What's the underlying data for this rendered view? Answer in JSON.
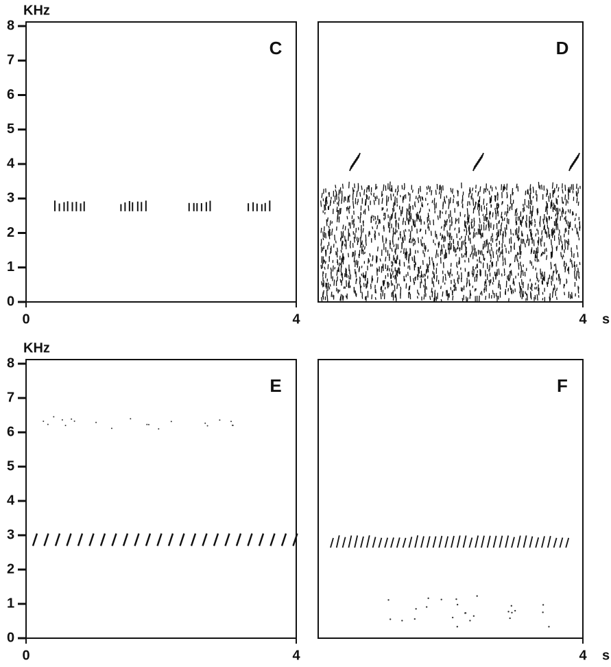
{
  "chart_data": [
    {
      "type": "spectrogram",
      "label": "C",
      "y_label": "KHz",
      "ylim": [
        0,
        8
      ],
      "yticks": [
        0,
        1,
        2,
        3,
        4,
        5,
        6,
        7,
        8
      ],
      "xlim": [
        0,
        4
      ],
      "xticks": [
        0,
        4
      ]
    },
    {
      "type": "spectrogram",
      "label": "D",
      "xlim": [
        0,
        4
      ],
      "xticks": [
        4
      ],
      "x_unit": "s"
    },
    {
      "type": "spectrogram",
      "label": "E",
      "y_label": "KHz",
      "ylim": [
        0,
        8
      ],
      "yticks": [
        0,
        1,
        2,
        3,
        4,
        5,
        6,
        7,
        8
      ],
      "xlim": [
        0,
        4
      ],
      "xticks": [
        0,
        4
      ]
    },
    {
      "type": "spectrogram",
      "label": "F",
      "xlim": [
        0,
        4
      ],
      "xticks": [
        4
      ],
      "x_unit": "s"
    }
  ]
}
